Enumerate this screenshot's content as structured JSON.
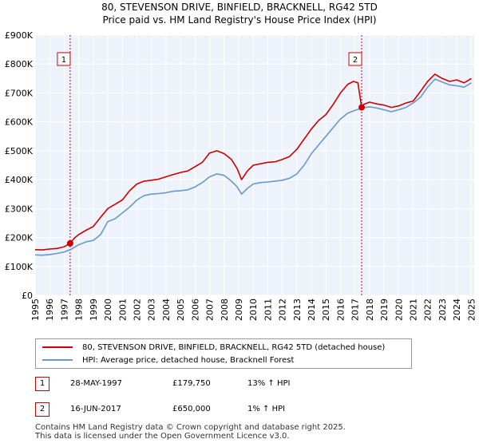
{
  "title_line1": "80, STEVENSON DRIVE, BINFIELD, BRACKNELL, RG42 5TD",
  "title_line2": "Price paid vs. HM Land Registry's House Price Index (HPI)",
  "legend": {
    "property_label": "80, STEVENSON DRIVE, BINFIELD, BRACKNELL, RG42 5TD (detached house)",
    "hpi_label": "HPI: Average price, detached house, Bracknell Forest"
  },
  "sales": [
    {
      "marker": "1",
      "date": "28-MAY-1997",
      "price": "£179,750",
      "hpi": "13% ↑ HPI"
    },
    {
      "marker": "2",
      "date": "16-JUN-2017",
      "price": "£650,000",
      "hpi": "1% ↑ HPI"
    }
  ],
  "footer_line1": "Contains HM Land Registry data © Crown copyright and database right 2025.",
  "footer_line2": "This data is licensed under the Open Government Licence v3.0.",
  "colors": {
    "property": "#cc0000",
    "hpi": "#6699cc",
    "plot_bg": "#eef2fa",
    "grid": "#ffffff"
  },
  "chart_data": {
    "type": "line",
    "title": "80, STEVENSON DRIVE, BINFIELD, BRACKNELL, RG42 5TD",
    "subtitle": "Price paid vs. HM Land Registry's House Price Index (HPI)",
    "xlabel": "",
    "ylabel": "",
    "xlim": [
      1995,
      2025.2
    ],
    "ylim": [
      0,
      900000
    ],
    "y_ticks": [
      0,
      100000,
      200000,
      300000,
      400000,
      500000,
      600000,
      700000,
      800000,
      900000
    ],
    "y_tick_labels": [
      "£0",
      "£100K",
      "£200K",
      "£300K",
      "£400K",
      "£500K",
      "£600K",
      "£700K",
      "£800K",
      "£900K"
    ],
    "x_ticks": [
      1995,
      1996,
      1997,
      1998,
      1999,
      2000,
      2001,
      2002,
      2003,
      2004,
      2005,
      2006,
      2007,
      2008,
      2009,
      2010,
      2011,
      2012,
      2013,
      2014,
      2015,
      2016,
      2017,
      2018,
      2019,
      2020,
      2021,
      2022,
      2023,
      2024,
      2025
    ],
    "x_tick_labels": [
      "1995",
      "1996",
      "1997",
      "1998",
      "1999",
      "2000",
      "2001",
      "2002",
      "2003",
      "2004",
      "2005",
      "2006",
      "2007",
      "2008",
      "2009",
      "2010",
      "2011",
      "2012",
      "2013",
      "2014",
      "2015",
      "2016",
      "2017",
      "2018",
      "2019",
      "2020",
      "2021",
      "2022",
      "2023",
      "2024",
      "2025"
    ],
    "grid": true,
    "legend_position": "below",
    "series": [
      {
        "name": "80, STEVENSON DRIVE, BINFIELD, BRACKNELL, RG42 5TD (detached house)",
        "color": "#cc0000",
        "x": [
          1995.0,
          1995.5,
          1996.0,
          1996.5,
          1997.0,
          1997.41,
          1997.7,
          1998.0,
          1998.5,
          1999.0,
          1999.5,
          2000.0,
          2000.5,
          2001.0,
          2001.5,
          2002.0,
          2002.5,
          2003.0,
          2003.5,
          2004.0,
          2004.5,
          2005.0,
          2005.5,
          2006.0,
          2006.5,
          2007.0,
          2007.5,
          2008.0,
          2008.5,
          2008.9,
          2009.2,
          2009.6,
          2010.0,
          2010.5,
          2011.0,
          2011.5,
          2012.0,
          2012.5,
          2013.0,
          2013.5,
          2014.0,
          2014.5,
          2015.0,
          2015.5,
          2016.0,
          2016.5,
          2016.9,
          2017.2,
          2017.46,
          2017.6,
          2018.0,
          2018.5,
          2019.0,
          2019.5,
          2020.0,
          2020.5,
          2021.0,
          2021.5,
          2022.0,
          2022.5,
          2023.0,
          2023.5,
          2024.0,
          2024.5,
          2025.0
        ],
        "values": [
          158000,
          157000,
          160000,
          162000,
          168000,
          179750,
          198000,
          210000,
          225000,
          238000,
          270000,
          300000,
          315000,
          330000,
          362000,
          385000,
          395000,
          398000,
          402000,
          410000,
          418000,
          425000,
          430000,
          445000,
          460000,
          492000,
          500000,
          490000,
          470000,
          438000,
          400000,
          430000,
          450000,
          455000,
          460000,
          462000,
          470000,
          480000,
          505000,
          540000,
          575000,
          605000,
          625000,
          660000,
          700000,
          730000,
          740000,
          735000,
          650000,
          660000,
          668000,
          662000,
          658000,
          650000,
          655000,
          665000,
          672000,
          705000,
          740000,
          765000,
          750000,
          740000,
          745000,
          735000,
          750000
        ]
      },
      {
        "name": "HPI: Average price, detached house, Bracknell Forest",
        "color": "#6699cc",
        "x": [
          1995.0,
          1995.5,
          1996.0,
          1996.5,
          1997.0,
          1997.5,
          1998.0,
          1998.5,
          1999.0,
          1999.5,
          2000.0,
          2000.5,
          2001.0,
          2001.5,
          2002.0,
          2002.5,
          2003.0,
          2003.5,
          2004.0,
          2004.5,
          2005.0,
          2005.5,
          2006.0,
          2006.5,
          2007.0,
          2007.5,
          2008.0,
          2008.5,
          2008.9,
          2009.2,
          2009.6,
          2010.0,
          2010.5,
          2011.0,
          2011.5,
          2012.0,
          2012.5,
          2013.0,
          2013.5,
          2014.0,
          2014.5,
          2015.0,
          2015.5,
          2016.0,
          2016.5,
          2017.0,
          2017.5,
          2018.0,
          2018.5,
          2019.0,
          2019.5,
          2020.0,
          2020.5,
          2021.0,
          2021.5,
          2022.0,
          2022.5,
          2023.0,
          2023.5,
          2024.0,
          2024.5,
          2025.0
        ],
        "values": [
          140000,
          139000,
          141000,
          145000,
          150000,
          160000,
          175000,
          185000,
          190000,
          210000,
          255000,
          265000,
          285000,
          305000,
          330000,
          345000,
          350000,
          352000,
          355000,
          360000,
          362000,
          365000,
          375000,
          390000,
          410000,
          420000,
          415000,
          395000,
          375000,
          350000,
          370000,
          385000,
          390000,
          392000,
          395000,
          398000,
          405000,
          420000,
          450000,
          490000,
          520000,
          550000,
          580000,
          610000,
          630000,
          640000,
          648000,
          652000,
          648000,
          642000,
          635000,
          642000,
          650000,
          665000,
          685000,
          720000,
          748000,
          738000,
          728000,
          725000,
          720000,
          735000
        ]
      }
    ],
    "annotations": [
      {
        "label": "1",
        "x": 1997.41,
        "y": 179750,
        "date": "28-MAY-1997"
      },
      {
        "label": "2",
        "x": 2017.46,
        "y": 650000,
        "date": "16-JUN-2017"
      }
    ]
  }
}
